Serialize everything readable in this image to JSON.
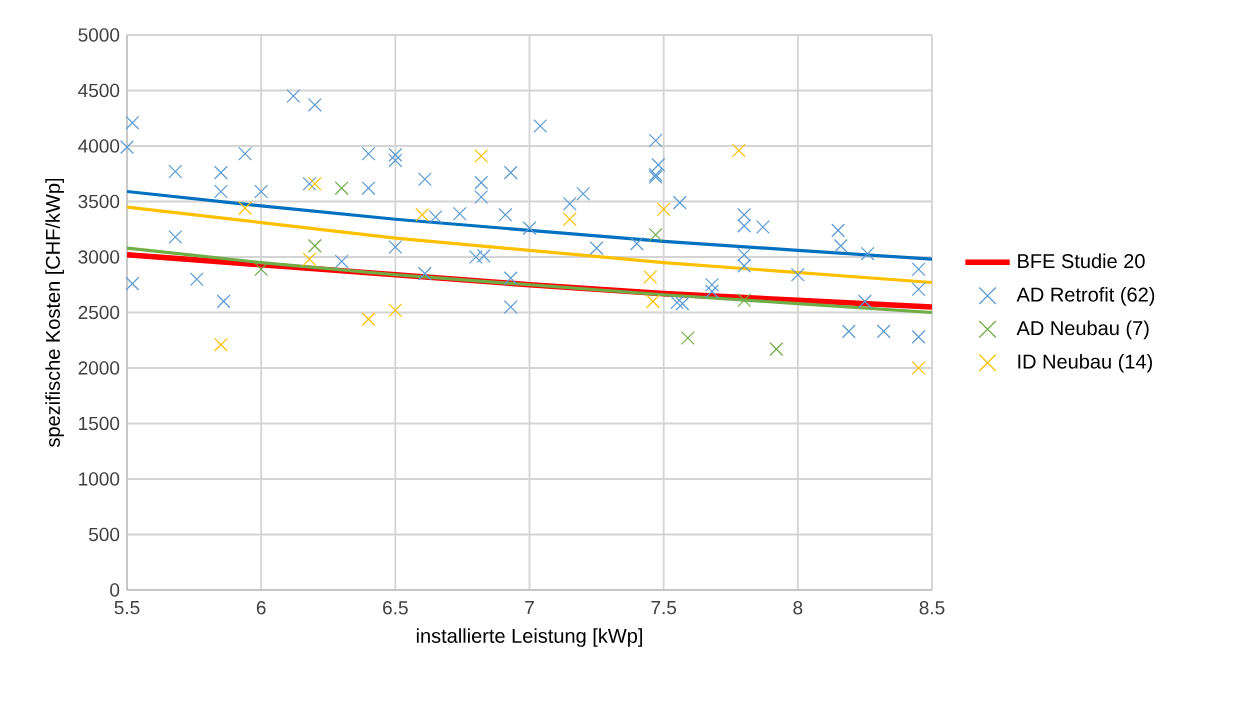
{
  "chart_data": {
    "type": "scatter",
    "xlabel": "installierte Leistung [kWp]",
    "ylabel": "spezifische Kosten [CHF/kWp]",
    "xlim": [
      5.5,
      8.5
    ],
    "xticks": [
      5.5,
      6,
      6.5,
      7,
      7.5,
      8,
      8.5
    ],
    "ylim": [
      0,
      5000
    ],
    "yticks": [
      0,
      500,
      1000,
      1500,
      2000,
      2500,
      3000,
      3500,
      4000,
      4500,
      5000
    ],
    "grid": true,
    "legend": "right",
    "series": [
      {
        "name": "BFE Studie 20",
        "type": "line",
        "marker": "none",
        "color": "#ff0000",
        "x": [
          5.5,
          6,
          6.5,
          7,
          7.5,
          8,
          8.5
        ],
        "values": [
          3020,
          2930,
          2840,
          2750,
          2670,
          2610,
          2550
        ]
      },
      {
        "name": "AD Retrofit (62)",
        "marker": "cross",
        "color": "#5b9bd5",
        "x": [
          5.5,
          5.52,
          5.52,
          5.68,
          5.68,
          5.76,
          5.85,
          5.85,
          5.86,
          5.94,
          6.0,
          6.12,
          6.2,
          6.18,
          6.3,
          6.4,
          6.4,
          6.5,
          6.5,
          6.5,
          6.61,
          6.61,
          6.65,
          6.74,
          6.8,
          6.82,
          6.82,
          6.83,
          6.91,
          6.93,
          6.93,
          6.93,
          7.0,
          7.04,
          7.15,
          7.2,
          7.25,
          7.4,
          7.47,
          7.48,
          7.47,
          7.47,
          7.56,
          7.55,
          7.57,
          7.68,
          7.68,
          7.8,
          7.8,
          7.8,
          7.8,
          7.87,
          8.0,
          8.15,
          8.16,
          8.19,
          8.26,
          8.25,
          8.32,
          8.45,
          8.45,
          8.45
        ],
        "values": [
          3990,
          4210,
          2760,
          3180,
          3770,
          2800,
          3760,
          3590,
          2600,
          3930,
          3590,
          4450,
          4370,
          3660,
          2960,
          3930,
          3620,
          3920,
          3870,
          3090,
          3700,
          2850,
          3360,
          3390,
          3000,
          3670,
          3540,
          3010,
          3380,
          3760,
          2810,
          2550,
          3260,
          4180,
          3480,
          3570,
          3080,
          3120,
          4050,
          3830,
          3740,
          3720,
          3490,
          2590,
          2580,
          2750,
          2690,
          3380,
          3280,
          3020,
          2920,
          3270,
          2840,
          3240,
          3100,
          2330,
          3030,
          2600,
          2330,
          2890,
          2710,
          2280
        ]
      },
      {
        "name": "AD Neubau (7)",
        "marker": "cross",
        "color": "#70ad47",
        "x": [
          6.0,
          6.2,
          6.3,
          7.47,
          7.59,
          7.8,
          7.92
        ],
        "values": [
          2890,
          3100,
          3620,
          3200,
          2270,
          2610,
          2170
        ]
      },
      {
        "name": "ID Neubau (14)",
        "marker": "cross",
        "color": "#ffc000",
        "x": [
          5.85,
          5.94,
          6.18,
          6.2,
          6.4,
          6.5,
          6.6,
          6.82,
          7.15,
          7.45,
          7.46,
          7.5,
          7.78,
          8.45
        ],
        "values": [
          2210,
          3440,
          2980,
          3660,
          2440,
          2520,
          3380,
          3910,
          3340,
          2820,
          2600,
          3430,
          3960,
          2000
        ]
      },
      {
        "type": "line",
        "marker": "none",
        "color": "#0070c0",
        "x": [
          5.5,
          6,
          6.5,
          7,
          7.5,
          8,
          8.5
        ],
        "values": [
          3590,
          3460,
          3340,
          3240,
          3140,
          3060,
          2980
        ]
      },
      {
        "type": "line",
        "marker": "none",
        "color": "#70ad47",
        "x": [
          5.5,
          6,
          6.5,
          7,
          7.5,
          8,
          8.5
        ],
        "values": [
          3080,
          2950,
          2840,
          2750,
          2660,
          2580,
          2500
        ]
      },
      {
        "type": "line",
        "marker": "none",
        "color": "#ffc000",
        "x": [
          5.5,
          6,
          6.5,
          7,
          7.5,
          8,
          8.5
        ],
        "values": [
          3450,
          3310,
          3170,
          3060,
          2950,
          2860,
          2770
        ]
      }
    ]
  }
}
